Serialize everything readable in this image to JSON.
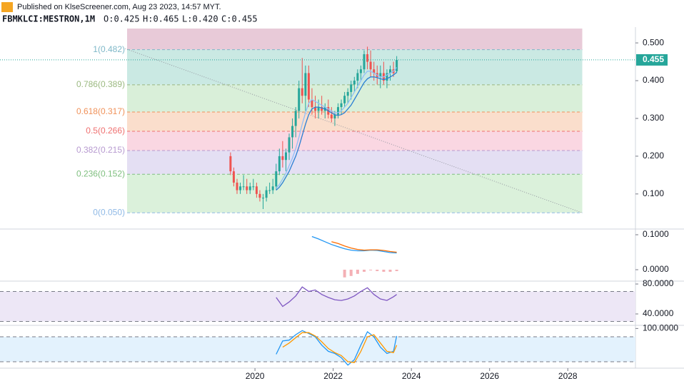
{
  "header": {
    "publisher": "Published on KlseScreener.com, Aug 23 2023, 14:57 MYT.",
    "symbol": "FBMKLCI:MESTRON,1M",
    "ohlc": [
      "O:0.425",
      "H:0.465",
      "L:0.420",
      "C:0.455"
    ]
  },
  "chart_data": [
    {
      "type": "candlestick",
      "x": [
        2019.375,
        2019.458,
        2019.542,
        2019.625,
        2019.708,
        2019.792,
        2019.875,
        2019.958,
        2020.042,
        2020.125,
        2020.208,
        2020.292,
        2020.375,
        2020.458,
        2020.542,
        2020.625,
        2020.708,
        2020.792,
        2020.875,
        2020.958,
        2021.042,
        2021.125,
        2021.208,
        2021.292,
        2021.375,
        2021.458,
        2021.542,
        2021.625,
        2021.708,
        2021.792,
        2021.875,
        2021.958,
        2022.042,
        2022.125,
        2022.208,
        2022.292,
        2022.375,
        2022.458,
        2022.542,
        2022.625,
        2022.708,
        2022.792,
        2022.875,
        2022.958,
        2023.042,
        2023.125,
        2023.208,
        2023.292,
        2023.375,
        2023.458,
        2023.542,
        2023.625
      ],
      "open": [
        0.2,
        0.16,
        0.13,
        0.11,
        0.12,
        0.12,
        0.11,
        0.12,
        0.12,
        0.1,
        0.09,
        0.09,
        0.11,
        0.11,
        0.12,
        0.16,
        0.2,
        0.19,
        0.21,
        0.25,
        0.28,
        0.32,
        0.38,
        0.36,
        0.42,
        0.35,
        0.33,
        0.32,
        0.33,
        0.32,
        0.33,
        0.31,
        0.3,
        0.31,
        0.33,
        0.34,
        0.36,
        0.37,
        0.39,
        0.4,
        0.42,
        0.43,
        0.47,
        0.45,
        0.43,
        0.42,
        0.41,
        0.42,
        0.4,
        0.42,
        0.43,
        0.425
      ],
      "high": [
        0.21,
        0.17,
        0.14,
        0.13,
        0.15,
        0.14,
        0.13,
        0.14,
        0.13,
        0.11,
        0.1,
        0.12,
        0.13,
        0.14,
        0.18,
        0.22,
        0.24,
        0.22,
        0.26,
        0.3,
        0.33,
        0.4,
        0.46,
        0.44,
        0.44,
        0.38,
        0.36,
        0.35,
        0.36,
        0.34,
        0.35,
        0.33,
        0.32,
        0.34,
        0.35,
        0.37,
        0.38,
        0.4,
        0.41,
        0.43,
        0.44,
        0.48,
        0.49,
        0.48,
        0.45,
        0.44,
        0.44,
        0.45,
        0.43,
        0.44,
        0.45,
        0.465
      ],
      "low": [
        0.15,
        0.12,
        0.1,
        0.1,
        0.11,
        0.1,
        0.1,
        0.11,
        0.09,
        0.08,
        0.06,
        0.08,
        0.1,
        0.1,
        0.11,
        0.15,
        0.17,
        0.16,
        0.19,
        0.22,
        0.25,
        0.3,
        0.34,
        0.32,
        0.33,
        0.31,
        0.3,
        0.3,
        0.31,
        0.3,
        0.3,
        0.29,
        0.28,
        0.3,
        0.31,
        0.33,
        0.34,
        0.35,
        0.37,
        0.38,
        0.4,
        0.42,
        0.43,
        0.41,
        0.4,
        0.39,
        0.38,
        0.39,
        0.38,
        0.4,
        0.41,
        0.42
      ],
      "close": [
        0.16,
        0.13,
        0.11,
        0.12,
        0.12,
        0.11,
        0.12,
        0.12,
        0.1,
        0.09,
        0.09,
        0.11,
        0.11,
        0.12,
        0.16,
        0.2,
        0.19,
        0.21,
        0.25,
        0.28,
        0.32,
        0.38,
        0.36,
        0.42,
        0.35,
        0.33,
        0.32,
        0.33,
        0.32,
        0.33,
        0.31,
        0.3,
        0.31,
        0.33,
        0.34,
        0.36,
        0.37,
        0.39,
        0.4,
        0.42,
        0.43,
        0.47,
        0.45,
        0.43,
        0.42,
        0.41,
        0.42,
        0.4,
        0.42,
        0.43,
        0.42,
        0.455
      ],
      "up_color": "#26a69a",
      "down_color": "#ef5350",
      "lines": [
        {
          "color": "#90bff9",
          "values": [
            null,
            null,
            null,
            null,
            null,
            null,
            null,
            null,
            null,
            null,
            null,
            null,
            null,
            null,
            0.115,
            0.125,
            0.14,
            0.155,
            0.175,
            0.195,
            0.22,
            0.25,
            0.285,
            0.315,
            0.34,
            0.35,
            0.345,
            0.34,
            0.335,
            0.33,
            0.325,
            0.32,
            0.315,
            0.315,
            0.32,
            0.33,
            0.34,
            0.355,
            0.37,
            0.385,
            0.4,
            0.415,
            0.425,
            0.425,
            0.42,
            0.415,
            0.41,
            0.41,
            0.415,
            0.42,
            0.425,
            0.435
          ]
        },
        {
          "color": "#2a7fd4",
          "values": [
            null,
            null,
            null,
            null,
            null,
            null,
            null,
            null,
            null,
            null,
            null,
            null,
            null,
            null,
            0.11,
            0.118,
            0.13,
            0.145,
            0.16,
            0.18,
            0.2,
            0.225,
            0.255,
            0.285,
            0.31,
            0.325,
            0.33,
            0.33,
            0.328,
            0.325,
            0.32,
            0.315,
            0.31,
            0.308,
            0.31,
            0.315,
            0.325,
            0.335,
            0.35,
            0.365,
            0.38,
            0.395,
            0.405,
            0.41,
            0.41,
            0.408,
            0.405,
            0.403,
            0.405,
            0.41,
            0.415,
            0.422
          ]
        }
      ],
      "fill_above": "#e6c4d4",
      "fib_x": [
        2016.73,
        2028.37
      ],
      "fib_levels": [
        {
          "value": 0.482,
          "label": "1(0.482)",
          "color": "#7fb8c8",
          "fill": "#c4e7e0"
        },
        {
          "value": 0.389,
          "label": "0.786(0.389)",
          "color": "#9bb980",
          "fill": "#d5edd5"
        },
        {
          "value": 0.317,
          "label": "0.618(0.317)",
          "color": "#f0925a",
          "fill": "#f9dac6"
        },
        {
          "value": 0.266,
          "label": "0.5(0.266)",
          "color": "#ef7070",
          "fill": "#f9d3df"
        },
        {
          "value": 0.215,
          "label": "0.382(0.215)",
          "color": "#b79ad0",
          "fill": "#e1dcf2"
        },
        {
          "value": 0.152,
          "label": "0.236(0.152)",
          "color": "#7fbf7f",
          "fill": "#d7efd7"
        },
        {
          "value": 0.05,
          "label": "0(0.050)",
          "color": "#8fb9e6"
        }
      ],
      "trend_line": {
        "x": [
          2016.68,
          2028.37
        ],
        "y": [
          0.485,
          0.05
        ]
      },
      "xlim": [
        2013.48,
        2029.73
      ],
      "ylim": [
        0.009,
        0.538
      ],
      "xticks": [
        2020,
        2022,
        2024,
        2026,
        2028
      ],
      "yticks": [
        {
          "value": 0.5,
          "label": "0.500"
        },
        {
          "value": 0.4,
          "label": "0.400"
        },
        {
          "value": 0.3,
          "label": "0.300"
        },
        {
          "value": 0.2,
          "label": "0.200"
        },
        {
          "value": 0.1,
          "label": "0.100"
        }
      ]
    },
    {
      "type": "line",
      "x": [
        2021.458,
        2021.625,
        2021.792,
        2021.958,
        2022.125,
        2022.292,
        2022.458,
        2022.625,
        2022.792,
        2022.958,
        2023.125,
        2023.292,
        2023.458,
        2023.625
      ],
      "series": [
        {
          "color": "#2196f3",
          "values": [
            0.095,
            0.088,
            0.08,
            0.072,
            0.066,
            0.06,
            0.056,
            0.054,
            0.054,
            0.056,
            0.055,
            0.052,
            0.049,
            0.048
          ]
        },
        {
          "color": "#ff6d00",
          "values": [
            null,
            null,
            null,
            0.08,
            0.075,
            0.068,
            0.062,
            0.058,
            0.056,
            0.057,
            0.057,
            0.055,
            0.052,
            0.05
          ]
        }
      ],
      "histogram": {
        "color": "#f4b0b5",
        "values": [
          null,
          null,
          null,
          null,
          null,
          -0.022,
          -0.018,
          -0.012,
          -0.006,
          -0.002,
          -0.004,
          -0.006,
          -0.006,
          -0.004
        ]
      },
      "xlim": [
        2013.48,
        2029.73
      ],
      "ylim": [
        -0.0286,
        0.1143
      ],
      "yticks": [
        {
          "value": 0.1,
          "label": "0.1000"
        },
        {
          "value": 0,
          "label": "0.0000"
        }
      ]
    },
    {
      "type": "line",
      "x": [
        2020.542,
        2020.708,
        2020.875,
        2021.042,
        2021.208,
        2021.375,
        2021.542,
        2021.708,
        2021.875,
        2022.042,
        2022.208,
        2022.375,
        2022.542,
        2022.708,
        2022.875,
        2023.042,
        2023.208,
        2023.375,
        2023.542,
        2023.625
      ],
      "series": [
        {
          "color": "#7e57c2",
          "values": [
            62,
            50,
            56,
            64,
            76,
            70,
            72,
            66,
            62,
            59,
            58,
            60,
            64,
            70,
            75,
            66,
            60,
            58,
            63,
            66
          ]
        }
      ],
      "band": [
        70,
        30
      ],
      "band_color": "#ede7f6",
      "xlim": [
        2013.48,
        2029.73
      ],
      "ylim": [
        25.7,
        82.9
      ],
      "yticks": [
        {
          "value": 80,
          "label": "80.0000"
        },
        {
          "value": 40,
          "label": "40.0000"
        }
      ]
    },
    {
      "type": "line",
      "x": [
        2020.542,
        2020.708,
        2020.875,
        2021.042,
        2021.208,
        2021.375,
        2021.542,
        2021.708,
        2021.875,
        2022.042,
        2022.208,
        2022.375,
        2022.542,
        2022.708,
        2022.875,
        2023.042,
        2023.208,
        2023.375,
        2023.542,
        2023.625
      ],
      "series": [
        {
          "color": "#2196f3",
          "values": [
            38,
            70,
            72,
            85,
            95,
            88,
            80,
            60,
            45,
            40,
            30,
            12,
            25,
            60,
            92,
            80,
            55,
            40,
            45,
            82
          ]
        },
        {
          "color": "#ff9800",
          "values": [
            null,
            55,
            65,
            78,
            90,
            90,
            82,
            68,
            52,
            42,
            35,
            20,
            18,
            45,
            80,
            85,
            65,
            45,
            42,
            60
          ]
        }
      ],
      "band": [
        80,
        20
      ],
      "band_color": "#e3f2fd",
      "xlim": [
        2013.48,
        2029.73
      ],
      "ylim": [
        6.3,
        105.8
      ],
      "yticks": [
        {
          "value": 100,
          "label": "100.0000"
        }
      ]
    }
  ]
}
